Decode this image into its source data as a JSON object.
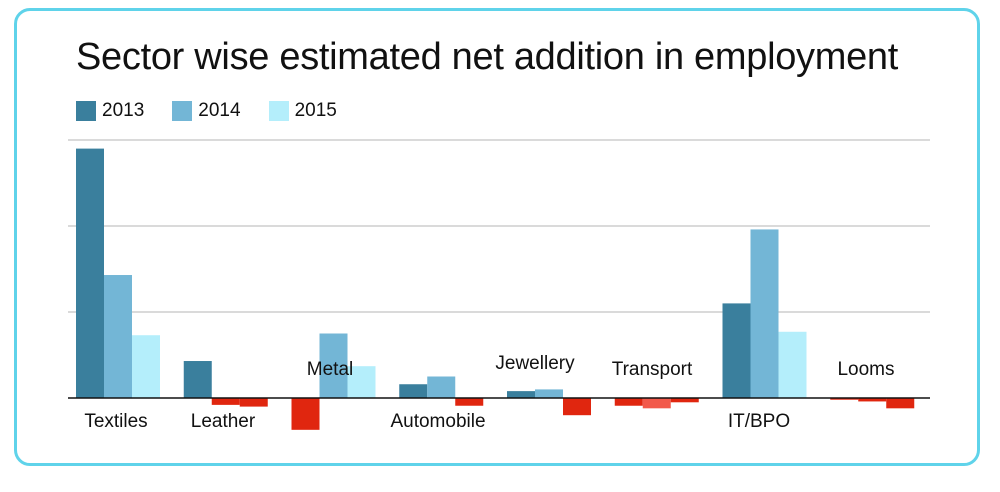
{
  "chart_data": {
    "type": "bar",
    "title": "Sector wise estimated net addition in employment",
    "categories": [
      "Textiles",
      "Leather",
      "Metal",
      "Automobile",
      "Jewellery",
      "Transport",
      "IT/BPO",
      "Looms"
    ],
    "series": [
      {
        "name": "2013",
        "color": "#3a7f9d",
        "values": [
          2.9,
          0.43,
          -0.37,
          0.16,
          0.08,
          -0.09,
          1.1,
          -0.02
        ]
      },
      {
        "name": "2014",
        "color": "#73b6d6",
        "values": [
          1.43,
          -0.08,
          0.75,
          0.25,
          0.1,
          -0.12,
          1.96,
          -0.04
        ]
      },
      {
        "name": "2015",
        "color": "#b4eefb",
        "values": [
          0.73,
          -0.1,
          0.37,
          -0.09,
          -0.2,
          -0.05,
          0.77,
          -0.12
        ]
      }
    ],
    "negative_color": "#e0260f",
    "negative_color_light": "#f2594a",
    "ylim": [
      -0.4,
      3.0
    ],
    "grid": true,
    "legend_position": "top-left"
  }
}
